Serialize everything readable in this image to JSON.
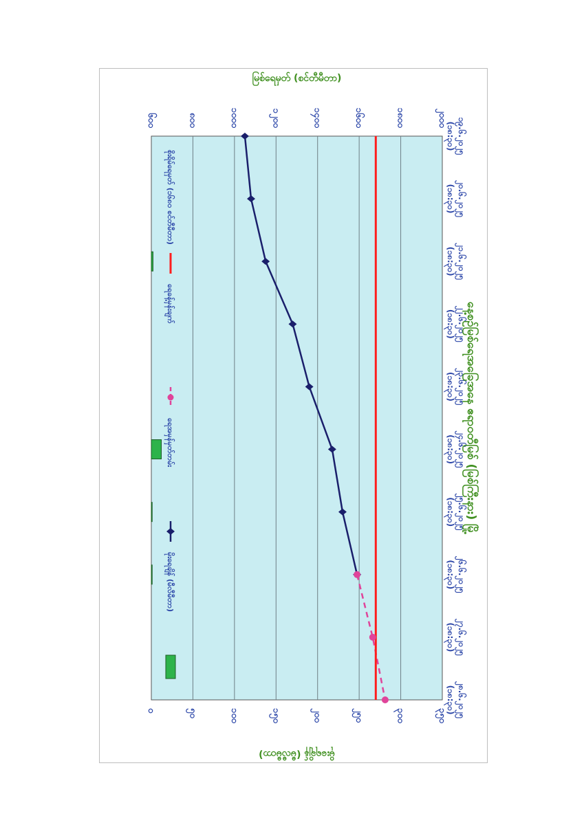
{
  "chart_data": {
    "type": "line",
    "title": "နေ့စဉ်မြစ်ရေအခြေအနေ ဧရာဝတီမြစ် (မြစ်ကြီးနား) မြို့",
    "x_categories": [
      {
        "date": "၁၉.၆.၂၀၂၅",
        "time": "(၁၈:၃၀)"
      },
      {
        "date": "၂၀.၆.၂၀၂၅",
        "time": "(၁၈:၃၀)"
      },
      {
        "date": "၂၁.၆.၂၀၂၅",
        "time": "(၁၈:၃၀)"
      },
      {
        "date": "၂၂.၆.၂၀၂၅",
        "time": "(၁၈:၃၀)"
      },
      {
        "date": "၂၃.၆.၂၀၂၅",
        "time": "(၁၈:၃၀)"
      },
      {
        "date": "၂၄.၆.၂၀၂၅",
        "time": "(၁၈:၃၀)"
      },
      {
        "date": "၂၅.၆.၂၀၂၅",
        "time": "(၁၈:၃၀)"
      },
      {
        "date": "၂၆.၆.၂၀၂၅",
        "time": "(၁၈:၃၀)"
      },
      {
        "date": "၂၇.၆.၂၀၂၅",
        "time": "(၁၈:၃၀)"
      },
      {
        "date": "၂၈.၆.၂၀၂၅",
        "time": "(၁၈:၃၀)"
      }
    ],
    "left_axis": {
      "label": "မြစ်ရေမှတ် (စင်တီမီတာ)",
      "ticks": [
        "၆၀၀",
        "၈၀၀",
        "၁၀၀၀",
        "၁၂၀၀",
        "၁၄၀၀",
        "၁၆၀၀",
        "၁၈၀၀",
        "၂၀၀၀"
      ],
      "tick_values": [
        600,
        800,
        1000,
        1200,
        1400,
        1600,
        1800,
        2000
      ],
      "range": [
        600,
        2000
      ]
    },
    "right_axis": {
      "label": "မိုးရေချိန် (မီလီမီတာ)",
      "ticks": [
        "၃၅၀",
        "၃၀၀",
        "၂၅၀",
        "၂၀၀",
        "၁၅၀",
        "၁၀၀",
        "၅၀",
        "၀"
      ],
      "tick_values": [
        350,
        300,
        250,
        200,
        150,
        100,
        50,
        0
      ],
      "range": [
        0,
        350
      ]
    },
    "series": [
      {
        "name": "ရေအမှန်မှတ်တမ်း",
        "style": "solid",
        "color": "#1a1f6b",
        "marker": "diamond",
        "values": [
          1050,
          1080,
          1150,
          1280,
          1360,
          1470,
          1520,
          1590,
          null,
          null
        ]
      },
      {
        "name": "ရေခန့်မှန်းချက်",
        "style": "dashed",
        "color": "#e0449a",
        "marker": "circle",
        "values": [
          null,
          null,
          null,
          null,
          null,
          null,
          null,
          1590,
          1665,
          1725
        ]
      },
      {
        "name": "စိုးရိမ်ရေမှတ် (၁၆၈၀ စင်တီမီတာ)",
        "style": "solid",
        "color": "#ff1e1e",
        "values": [
          1680,
          1680,
          1680,
          1680,
          1680,
          1680,
          1680,
          1680,
          1680,
          1680
        ]
      }
    ],
    "rainfall_bars": {
      "name": "မိုးရေချိန် (မီလီမီတာ)",
      "color": "#2db34a",
      "values": [
        0,
        0,
        2,
        0,
        0,
        12,
        1,
        1,
        0,
        0
      ]
    },
    "grid": true,
    "plot_background": "#c9edf2",
    "legend_position": "bottom"
  }
}
